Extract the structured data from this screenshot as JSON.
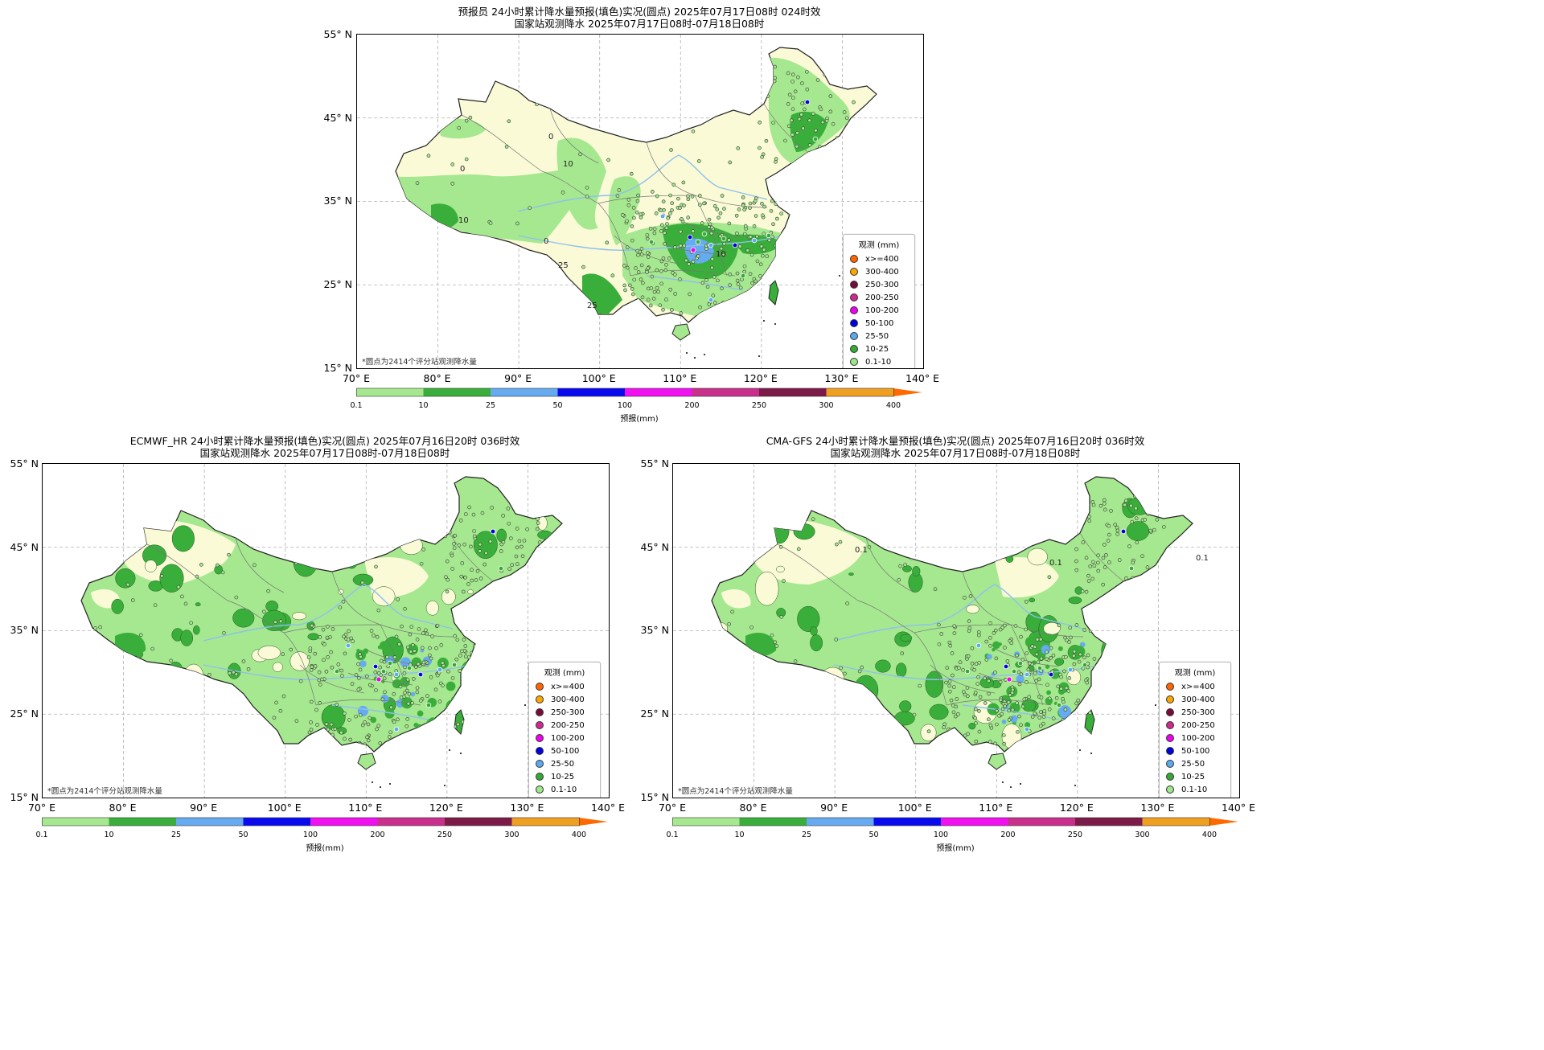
{
  "panels": [
    {
      "id": "forecaster",
      "title_line1": "预报员 24小时累计降水量预报(填色)实况(圆点) 2025年07月17日08时 024时效",
      "title_line2": "国家站观测降水 2025年07月17日08时-07月18日08时",
      "note": "*圆点为2414个评分站观测降水量",
      "contour_labels": [
        "0",
        "0",
        "0",
        "10",
        "10",
        "10",
        "25",
        "25"
      ]
    },
    {
      "id": "ecmwf",
      "title_line1": "ECMWF_HR 24小时累计降水量预报(填色)实况(圆点) 2025年07月16日20时 036时效",
      "title_line2": "国家站观测降水 2025年07月17日08时-07月18日08时",
      "note": "*圆点为2414个评分站观测降水量",
      "contour_labels": []
    },
    {
      "id": "cma-gfs",
      "title_line1": "CMA-GFS 24小时累计降水量预报(填色)实况(圆点) 2025年07月16日20时 036时效",
      "title_line2": "国家站观测降水 2025年07月17日08时-07月18日08时",
      "note": "*圆点为2414个评分站观测降水量",
      "contour_labels": [
        "0.1",
        "0.1",
        "0.1"
      ]
    }
  ],
  "axes": {
    "lat_labels": [
      "55° N",
      "45° N",
      "35° N",
      "25° N",
      "15° N"
    ],
    "lon_labels": [
      "70° E",
      "80° E",
      "90° E",
      "100° E",
      "110° E",
      "120° E",
      "130° E",
      "140° E"
    ]
  },
  "legend": {
    "title": "观测 (mm)",
    "items": [
      {
        "label": "x>=400",
        "color": "#ff6400"
      },
      {
        "label": "300-400",
        "color": "#ffa500"
      },
      {
        "label": "250-300",
        "color": "#7a0a3c"
      },
      {
        "label": "200-250",
        "color": "#cd2a8e"
      },
      {
        "label": "100-200",
        "color": "#f000f0"
      },
      {
        "label": "50-100",
        "color": "#0000e0"
      },
      {
        "label": "25-50",
        "color": "#5aaaf0"
      },
      {
        "label": "10-25",
        "color": "#34aa34"
      },
      {
        "label": "0.1-10",
        "color": "#9de68a"
      }
    ]
  },
  "colorbar": {
    "label": "预报(mm)",
    "ticks": [
      "0.1",
      "10",
      "25",
      "50",
      "100",
      "200",
      "250",
      "300",
      "400"
    ],
    "colors": [
      "#a6e88f",
      "#3aae3a",
      "#66aaf0",
      "#0a0aee",
      "#f010f0",
      "#c8308c",
      "#7c1a48",
      "#f0a020"
    ],
    "extend_color": "#ff6a00"
  },
  "map_colors": {
    "land_dry": "#fafad7",
    "light_rain": "#a6e88f",
    "moderate_rain": "#3aae3a",
    "heavy_rain": "#66aaf0",
    "river": "#8fc0ee",
    "border": "#777777",
    "grid": "#b0b0b0"
  }
}
